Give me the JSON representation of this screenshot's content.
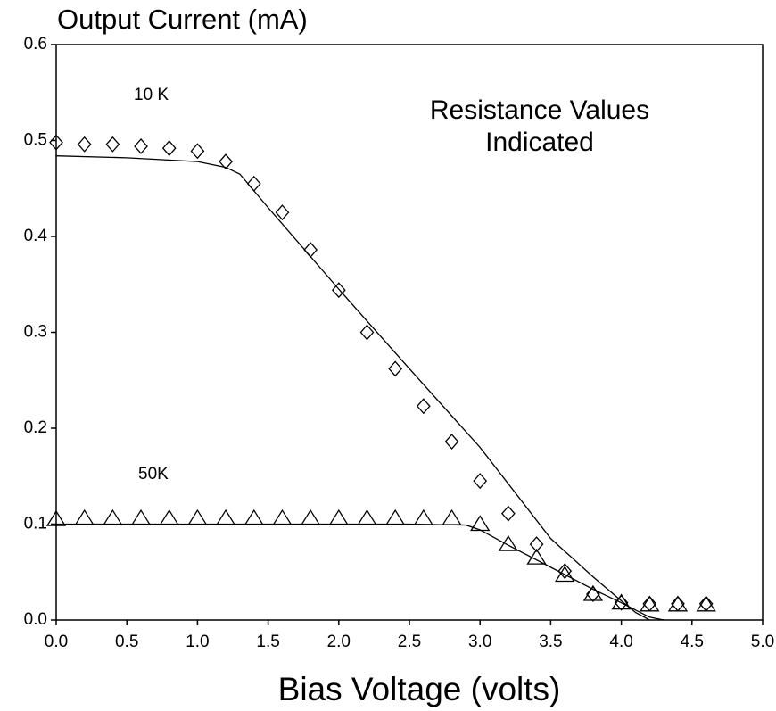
{
  "chart_data": {
    "type": "scatter",
    "title": "Output Current (mA)",
    "x_label": "Bias Voltage (volts)",
    "annotations": [
      "10 K",
      "50K",
      "Resistance Values",
      "Indicated"
    ],
    "xlim": [
      0,
      5
    ],
    "ylim": [
      0,
      0.6
    ],
    "xticks": [
      {
        "value": 0,
        "label": "0.0"
      },
      0.5,
      {
        "value": 1,
        "label": "1.0"
      },
      1.5,
      {
        "value": 2,
        "label": "2.0"
      },
      2.5,
      {
        "value": 3,
        "label": "3.0"
      },
      3.5,
      {
        "value": 4,
        "label": "4.0"
      },
      4.5,
      {
        "value": 5,
        "label": "5.0"
      }
    ],
    "yticks": [
      {
        "value": 0,
        "label": "0.0"
      },
      0.1,
      0.2,
      0.3,
      0.4,
      0.5,
      0.6
    ],
    "grid": false,
    "series": [
      {
        "marker": "diamond",
        "color": "#000000",
        "x": [
          0,
          0.2,
          0.4,
          0.6,
          0.8,
          1.0,
          1.2,
          1.4,
          1.6,
          1.8,
          2.0,
          2.2,
          2.4,
          2.6,
          2.8,
          3.0,
          3.2,
          3.4,
          3.6,
          3.8,
          4.0,
          4.2,
          4.4,
          4.6
        ],
        "values": [
          0.498,
          0.496,
          0.496,
          0.494,
          0.492,
          0.489,
          0.478,
          0.455,
          0.425,
          0.386,
          0.344,
          0.3,
          0.262,
          0.223,
          0.186,
          0.145,
          0.111,
          0.079,
          0.051,
          0.027,
          0.018,
          0.017,
          0.017,
          0.017
        ]
      },
      {
        "marker": "triangle",
        "color": "#000000",
        "x": [
          0,
          0.2,
          0.4,
          0.6,
          0.8,
          1.0,
          1.2,
          1.4,
          1.6,
          1.8,
          2.0,
          2.2,
          2.4,
          2.6,
          2.8,
          3.0,
          3.2,
          3.4,
          3.6,
          3.8,
          4.0,
          4.2,
          4.4,
          4.6
        ],
        "values": [
          0.105,
          0.106,
          0.106,
          0.106,
          0.106,
          0.106,
          0.106,
          0.106,
          0.106,
          0.106,
          0.106,
          0.106,
          0.106,
          0.106,
          0.106,
          0.1,
          0.079,
          0.065,
          0.047,
          0.027,
          0.018,
          0.016,
          0.016,
          0.016
        ]
      },
      {
        "marker": "line",
        "color": "#000000",
        "x": [
          0,
          0.5,
          1.0,
          1.2,
          1.3,
          1.5,
          2.0,
          2.5,
          3.0,
          3.5,
          3.8,
          4.0,
          4.1,
          4.2
        ],
        "values": [
          0.484,
          0.482,
          0.478,
          0.472,
          0.465,
          0.43,
          0.345,
          0.262,
          0.18,
          0.085,
          0.045,
          0.02,
          0.008,
          0.0
        ]
      },
      {
        "marker": "line",
        "color": "#000000",
        "x": [
          0,
          1.0,
          2.0,
          2.5,
          2.9,
          3.0,
          3.2,
          3.5,
          3.8,
          4.0,
          4.2,
          4.3
        ],
        "values": [
          0.1,
          0.1,
          0.1,
          0.1,
          0.099,
          0.094,
          0.078,
          0.055,
          0.032,
          0.018,
          0.003,
          0.0
        ]
      }
    ]
  }
}
